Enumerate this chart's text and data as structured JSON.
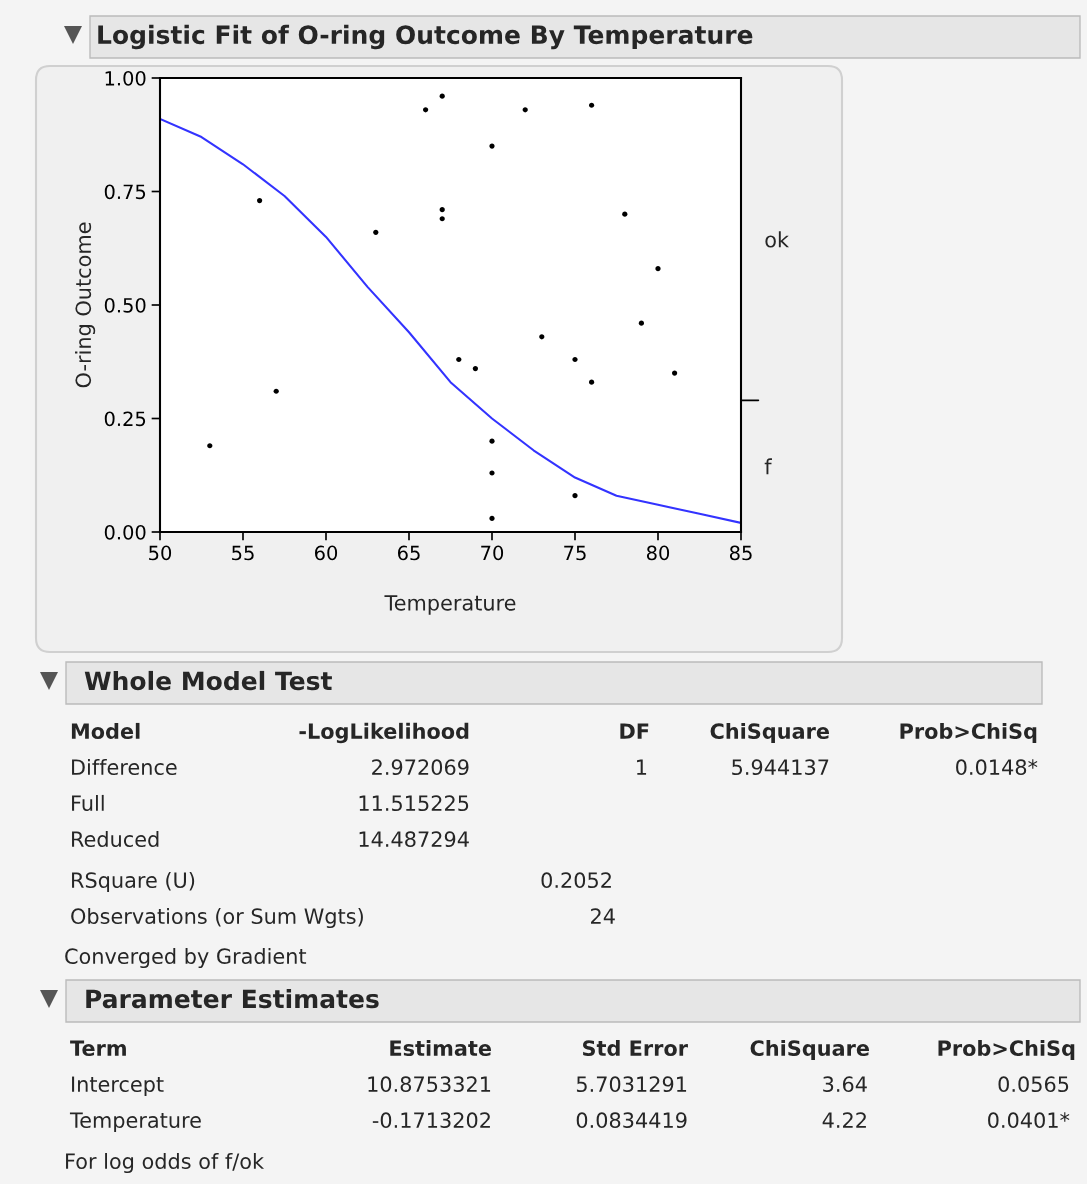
{
  "chart_data": [
    {
      "type": "scatter",
      "title": "Logistic Fit of O-ring Outcome By Temperature",
      "xlabel": "Temperature",
      "ylabel": "O-ring Outcome",
      "xlim": [
        50,
        85
      ],
      "ylim": [
        0,
        1
      ],
      "xticks": [
        50,
        55,
        60,
        65,
        70,
        75,
        80,
        85
      ],
      "yticks": [
        {
          "value": 0,
          "label": "0.00"
        },
        {
          "value": 0.25,
          "label": "0.25"
        },
        {
          "value": 0.5,
          "label": "0.50"
        },
        {
          "value": 0.75,
          "label": "0.75"
        },
        {
          "value": 1,
          "label": "1.00"
        }
      ],
      "annotations": [
        "ok",
        "f"
      ],
      "grid": false,
      "series": [
        {
          "type": "scatter",
          "color": "#000000",
          "marker": "circle",
          "x": [
            53,
            56,
            57,
            63,
            66,
            67,
            67,
            67,
            72,
            76,
            70,
            78,
            80,
            79,
            73,
            68,
            69,
            75,
            76,
            81,
            70,
            70,
            75,
            70
          ],
          "values": [
            0.19,
            0.73,
            0.31,
            0.66,
            0.93,
            0.96,
            0.69,
            0.71,
            0.93,
            0.94,
            0.85,
            0.7,
            0.58,
            0.46,
            0.43,
            0.38,
            0.36,
            0.38,
            0.33,
            0.35,
            0.2,
            0.13,
            0.08,
            0.03
          ]
        },
        {
          "type": "line",
          "color": "#3333ff",
          "line_style": "solid",
          "x": [
            50,
            52.5,
            55,
            57.5,
            60,
            62.5,
            65,
            67.5,
            70,
            72.5,
            75,
            77.5,
            80,
            82.5,
            85
          ],
          "values": [
            0.91,
            0.87,
            0.81,
            0.74,
            0.65,
            0.54,
            0.44,
            0.33,
            0.25,
            0.18,
            0.12,
            0.08,
            0.06,
            0.04,
            0.02
          ]
        }
      ]
    },
    {
      "type": "other",
      "title": "Whole Model Test",
      "annotations": [
        "Model",
        "-LogLikelihood",
        "DF",
        "ChiSquare",
        "Prob>ChiSq",
        "Difference",
        "2.972069",
        "1",
        "5.944137",
        "0.0148*",
        "Full",
        "11.515225",
        "Reduced",
        "14.487294",
        "RSquare (U)",
        "0.2052",
        "Observations (or Sum Wgts)",
        "24",
        "Converged by Gradient"
      ]
    },
    {
      "type": "other",
      "title": "Parameter Estimates",
      "annotations": [
        "Term",
        "Estimate",
        "Std Error",
        "ChiSquare",
        "Prob>ChiSq",
        "Intercept",
        "10.8753321",
        "5.7031291",
        "3.64",
        "0.0565",
        "Temperature",
        "-0.1713202",
        "0.0834419",
        "4.22",
        "0.0401*",
        "For log odds of f/ok"
      ]
    }
  ]
}
